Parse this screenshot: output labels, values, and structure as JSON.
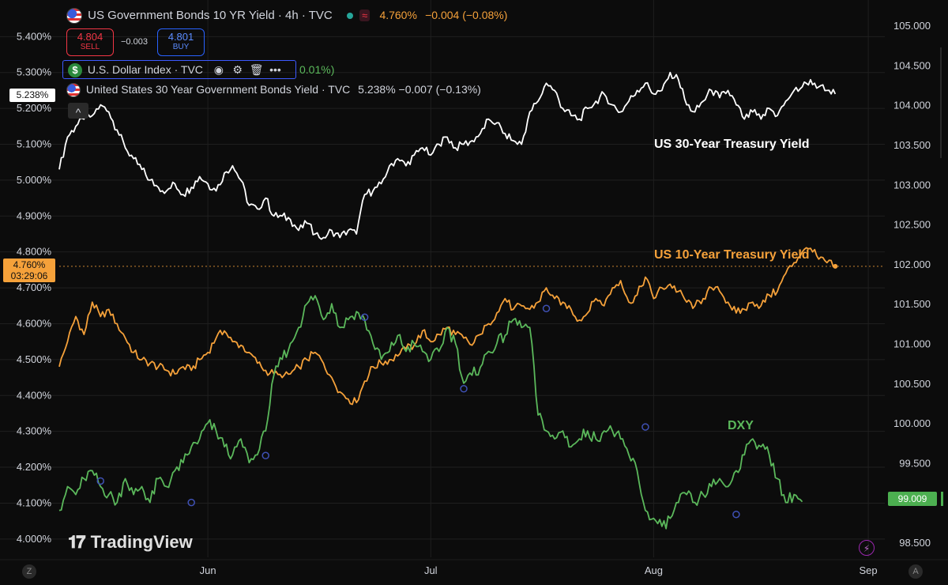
{
  "header": {
    "main_title": "US Government Bonds 10 YR Yield · 4h · TVC",
    "main_value": "4.760%",
    "main_change": "−0.004 (−0.08%)",
    "sell_price": "4.804",
    "sell_label": "SELL",
    "spread": "−0.003",
    "buy_price": "4.801",
    "buy_label": "BUY",
    "dxy_title": "U.S. Dollar Index · TVC",
    "dxy_change_partial": "0.01%)",
    "us30_title": "United States 30 Year Government Bonds Yield · TVC",
    "us30_values": "5.238%  −0.007 (−0.13%)",
    "collapse_glyph": "^"
  },
  "labels": {
    "tag_30y": "5.238%",
    "tag_10y_value": "4.760%",
    "tag_10y_countdown": "03:29:06",
    "tag_dxy": "99.009",
    "brand": "TradingView",
    "bottom_left": "Z",
    "bottom_right": "A"
  },
  "colors": {
    "background": "#0c0c0c",
    "us30": "#ffffff",
    "us10": "#f5a13a",
    "dxy": "#5bb85b",
    "grid": "#1f1f1f",
    "axis_text": "#d1d4dc",
    "sell": "#f23645",
    "buy": "#2962ff",
    "event_marker": "#3f51b5"
  },
  "chart_data": {
    "type": "line",
    "annotations": [
      "US 30-Year Treasury Yield",
      "US 10-Year Treasury Yield",
      "DXY"
    ],
    "x_ticks": [
      "Jun",
      "Jul",
      "Aug",
      "Sep"
    ],
    "left_axis": {
      "unit": "%",
      "range": [
        3.96,
        5.48
      ],
      "ticks": [
        "5.400%",
        "5.300%",
        "5.200%",
        "5.100%",
        "5.000%",
        "4.900%",
        "4.800%",
        "4.700%",
        "4.600%",
        "4.500%",
        "4.400%",
        "4.300%",
        "4.200%",
        "4.100%",
        "4.000%"
      ],
      "tick_values": [
        5.4,
        5.3,
        5.2,
        5.1,
        5.0,
        4.9,
        4.8,
        4.7,
        4.6,
        4.5,
        4.4,
        4.3,
        4.2,
        4.1,
        4.0
      ]
    },
    "right_axis": {
      "range": [
        98.36,
        105.22
      ],
      "ticks": [
        "105.000",
        "104.500",
        "104.000",
        "103.500",
        "103.000",
        "102.500",
        "102.000",
        "101.500",
        "101.000",
        "100.500",
        "100.000",
        "99.500",
        "99.009",
        "98.500"
      ],
      "tick_values": [
        105.0,
        104.5,
        104.0,
        103.5,
        103.0,
        102.5,
        102.0,
        101.5,
        101.0,
        100.5,
        100.0,
        99.5,
        99.009,
        98.5
      ]
    },
    "x_range": [
      0,
      100
    ],
    "series": [
      {
        "key": "us30",
        "axis": "left",
        "last": 5.238,
        "points": [
          [
            0,
            5.03
          ],
          [
            1,
            5.12
          ],
          [
            2,
            5.15
          ],
          [
            3,
            5.17
          ],
          [
            4,
            5.18
          ],
          [
            5,
            5.21
          ],
          [
            6,
            5.19
          ],
          [
            7,
            5.14
          ],
          [
            8,
            5.09
          ],
          [
            9,
            5.06
          ],
          [
            10,
            5.03
          ],
          [
            11,
            5.0
          ],
          [
            12,
            4.98
          ],
          [
            13,
            4.97
          ],
          [
            14,
            4.99
          ],
          [
            15,
            4.96
          ],
          [
            16,
            4.98
          ],
          [
            17,
            5.01
          ],
          [
            18,
            4.99
          ],
          [
            19,
            4.97
          ],
          [
            20,
            5.02
          ],
          [
            21,
            5.04
          ],
          [
            22,
            5.0
          ],
          [
            23,
            4.93
          ],
          [
            24,
            4.92
          ],
          [
            25,
            4.95
          ],
          [
            26,
            4.9
          ],
          [
            27,
            4.9
          ],
          [
            28,
            4.89
          ],
          [
            29,
            4.86
          ],
          [
            30,
            4.88
          ],
          [
            31,
            4.85
          ],
          [
            32,
            4.84
          ],
          [
            33,
            4.86
          ],
          [
            34,
            4.84
          ],
          [
            35,
            4.86
          ],
          [
            36,
            4.85
          ],
          [
            37,
            4.96
          ],
          [
            38,
            4.97
          ],
          [
            39,
            4.99
          ],
          [
            40,
            5.04
          ],
          [
            41,
            5.06
          ],
          [
            42,
            5.04
          ],
          [
            43,
            5.07
          ],
          [
            44,
            5.09
          ],
          [
            45,
            5.07
          ],
          [
            46,
            5.1
          ],
          [
            47,
            5.12
          ],
          [
            48,
            5.09
          ],
          [
            49,
            5.1
          ],
          [
            50,
            5.11
          ],
          [
            51,
            5.13
          ],
          [
            52,
            5.17
          ],
          [
            53,
            5.16
          ],
          [
            54,
            5.13
          ],
          [
            55,
            5.11
          ],
          [
            56,
            5.1
          ],
          [
            57,
            5.19
          ],
          [
            58,
            5.22
          ],
          [
            59,
            5.27
          ],
          [
            60,
            5.25
          ],
          [
            61,
            5.2
          ],
          [
            62,
            5.18
          ],
          [
            63,
            5.17
          ],
          [
            64,
            5.2
          ],
          [
            65,
            5.22
          ],
          [
            66,
            5.24
          ],
          [
            67,
            5.21
          ],
          [
            68,
            5.19
          ],
          [
            69,
            5.22
          ],
          [
            70,
            5.25
          ],
          [
            71,
            5.27
          ],
          [
            72,
            5.24
          ],
          [
            73,
            5.25
          ],
          [
            74,
            5.3
          ],
          [
            75,
            5.28
          ],
          [
            76,
            5.21
          ],
          [
            77,
            5.19
          ],
          [
            78,
            5.22
          ],
          [
            79,
            5.25
          ],
          [
            80,
            5.23
          ],
          [
            81,
            5.25
          ],
          [
            82,
            5.21
          ],
          [
            83,
            5.17
          ],
          [
            84,
            5.19
          ],
          [
            85,
            5.17
          ],
          [
            86,
            5.2
          ],
          [
            87,
            5.18
          ],
          [
            88,
            5.22
          ],
          [
            89,
            5.25
          ],
          [
            90,
            5.26
          ],
          [
            91,
            5.28
          ],
          [
            92,
            5.26
          ],
          [
            93,
            5.25
          ],
          [
            94,
            5.24
          ]
        ]
      },
      {
        "key": "us10",
        "axis": "left",
        "last": 4.76,
        "points": [
          [
            0,
            4.48
          ],
          [
            1,
            4.55
          ],
          [
            2,
            4.62
          ],
          [
            3,
            4.57
          ],
          [
            4,
            4.66
          ],
          [
            5,
            4.62
          ],
          [
            6,
            4.64
          ],
          [
            7,
            4.6
          ],
          [
            8,
            4.56
          ],
          [
            9,
            4.52
          ],
          [
            10,
            4.5
          ],
          [
            11,
            4.49
          ],
          [
            12,
            4.48
          ],
          [
            13,
            4.47
          ],
          [
            14,
            4.46
          ],
          [
            15,
            4.48
          ],
          [
            16,
            4.47
          ],
          [
            17,
            4.5
          ],
          [
            18,
            4.52
          ],
          [
            19,
            4.56
          ],
          [
            20,
            4.58
          ],
          [
            21,
            4.55
          ],
          [
            22,
            4.54
          ],
          [
            23,
            4.52
          ],
          [
            24,
            4.49
          ],
          [
            25,
            4.47
          ],
          [
            26,
            4.46
          ],
          [
            27,
            4.45
          ],
          [
            28,
            4.46
          ],
          [
            29,
            4.48
          ],
          [
            30,
            4.5
          ],
          [
            31,
            4.52
          ],
          [
            32,
            4.49
          ],
          [
            33,
            4.45
          ],
          [
            34,
            4.41
          ],
          [
            35,
            4.39
          ],
          [
            36,
            4.38
          ],
          [
            37,
            4.44
          ],
          [
            38,
            4.48
          ],
          [
            39,
            4.49
          ],
          [
            40,
            4.5
          ],
          [
            41,
            4.51
          ],
          [
            42,
            4.53
          ],
          [
            43,
            4.54
          ],
          [
            44,
            4.58
          ],
          [
            45,
            4.55
          ],
          [
            46,
            4.57
          ],
          [
            47,
            4.59
          ],
          [
            48,
            4.57
          ],
          [
            49,
            4.56
          ],
          [
            50,
            4.54
          ],
          [
            51,
            4.57
          ],
          [
            52,
            4.6
          ],
          [
            53,
            4.63
          ],
          [
            54,
            4.67
          ],
          [
            55,
            4.64
          ],
          [
            56,
            4.65
          ],
          [
            57,
            4.64
          ],
          [
            58,
            4.66
          ],
          [
            59,
            4.7
          ],
          [
            60,
            4.67
          ],
          [
            61,
            4.66
          ],
          [
            62,
            4.64
          ],
          [
            63,
            4.61
          ],
          [
            64,
            4.63
          ],
          [
            65,
            4.67
          ],
          [
            66,
            4.65
          ],
          [
            67,
            4.7
          ],
          [
            68,
            4.72
          ],
          [
            69,
            4.66
          ],
          [
            70,
            4.68
          ],
          [
            71,
            4.73
          ],
          [
            72,
            4.67
          ],
          [
            73,
            4.7
          ],
          [
            74,
            4.71
          ],
          [
            75,
            4.69
          ],
          [
            76,
            4.66
          ],
          [
            77,
            4.65
          ],
          [
            78,
            4.67
          ],
          [
            79,
            4.7
          ],
          [
            80,
            4.69
          ],
          [
            81,
            4.66
          ],
          [
            82,
            4.63
          ],
          [
            83,
            4.64
          ],
          [
            84,
            4.66
          ],
          [
            85,
            4.65
          ],
          [
            86,
            4.68
          ],
          [
            87,
            4.69
          ],
          [
            88,
            4.74
          ],
          [
            89,
            4.77
          ],
          [
            90,
            4.8
          ],
          [
            91,
            4.81
          ],
          [
            92,
            4.78
          ],
          [
            93,
            4.77
          ],
          [
            94,
            4.76
          ]
        ]
      },
      {
        "key": "dxy",
        "axis": "right",
        "last": 99.009,
        "points": [
          [
            0,
            98.9
          ],
          [
            1,
            99.2
          ],
          [
            2,
            99.1
          ],
          [
            3,
            99.3
          ],
          [
            4,
            99.4
          ],
          [
            5,
            99.2
          ],
          [
            6,
            99.1
          ],
          [
            7,
            99.0
          ],
          [
            8,
            99.3
          ],
          [
            9,
            99.1
          ],
          [
            10,
            99.2
          ],
          [
            11,
            99.0
          ],
          [
            12,
            99.3
          ],
          [
            13,
            99.2
          ],
          [
            14,
            99.4
          ],
          [
            15,
            99.5
          ],
          [
            16,
            99.7
          ],
          [
            17,
            99.8
          ],
          [
            18,
            100.0
          ],
          [
            19,
            99.9
          ],
          [
            20,
            99.7
          ],
          [
            21,
            99.6
          ],
          [
            22,
            99.8
          ],
          [
            23,
            99.5
          ],
          [
            24,
            99.6
          ],
          [
            25,
            99.9
          ],
          [
            26,
            100.6
          ],
          [
            27,
            100.8
          ],
          [
            28,
            101.0
          ],
          [
            29,
            101.2
          ],
          [
            30,
            101.5
          ],
          [
            31,
            101.6
          ],
          [
            32,
            101.3
          ],
          [
            33,
            101.5
          ],
          [
            34,
            101.2
          ],
          [
            35,
            101.3
          ],
          [
            36,
            101.4
          ],
          [
            37,
            101.3
          ],
          [
            38,
            101.0
          ],
          [
            39,
            100.8
          ],
          [
            40,
            100.9
          ],
          [
            41,
            101.1
          ],
          [
            42,
            100.9
          ],
          [
            43,
            101.0
          ],
          [
            44,
            100.9
          ],
          [
            45,
            100.8
          ],
          [
            46,
            100.9
          ],
          [
            47,
            101.2
          ],
          [
            48,
            101.0
          ],
          [
            49,
            100.5
          ],
          [
            50,
            100.6
          ],
          [
            51,
            100.7
          ],
          [
            52,
            100.9
          ],
          [
            53,
            101.0
          ],
          [
            54,
            101.1
          ],
          [
            55,
            101.3
          ],
          [
            56,
            101.2
          ],
          [
            57,
            101.2
          ],
          [
            58,
            100.1
          ],
          [
            59,
            99.9
          ],
          [
            60,
            99.8
          ],
          [
            61,
            99.9
          ],
          [
            62,
            99.7
          ],
          [
            63,
            99.8
          ],
          [
            64,
            99.9
          ],
          [
            65,
            99.8
          ],
          [
            66,
            99.9
          ],
          [
            67,
            99.9
          ],
          [
            68,
            99.8
          ],
          [
            69,
            99.6
          ],
          [
            70,
            99.4
          ],
          [
            71,
            98.9
          ],
          [
            72,
            98.8
          ],
          [
            73,
            98.7
          ],
          [
            74,
            98.8
          ],
          [
            75,
            99.0
          ],
          [
            76,
            99.1
          ],
          [
            77,
            99.0
          ],
          [
            78,
            99.1
          ],
          [
            79,
            99.2
          ],
          [
            80,
            99.3
          ],
          [
            81,
            99.2
          ],
          [
            82,
            99.4
          ],
          [
            83,
            99.6
          ],
          [
            84,
            99.8
          ],
          [
            85,
            99.7
          ],
          [
            86,
            99.6
          ],
          [
            87,
            99.3
          ],
          [
            88,
            99.0
          ],
          [
            89,
            99.1
          ],
          [
            90,
            99.009
          ]
        ]
      }
    ],
    "event_markers": [
      [
        5,
        99.27
      ],
      [
        16,
        99.0
      ],
      [
        25,
        99.59
      ],
      [
        37,
        101.33
      ],
      [
        49,
        100.43
      ],
      [
        59,
        101.44
      ],
      [
        71,
        99.95
      ],
      [
        82,
        98.85
      ]
    ]
  }
}
